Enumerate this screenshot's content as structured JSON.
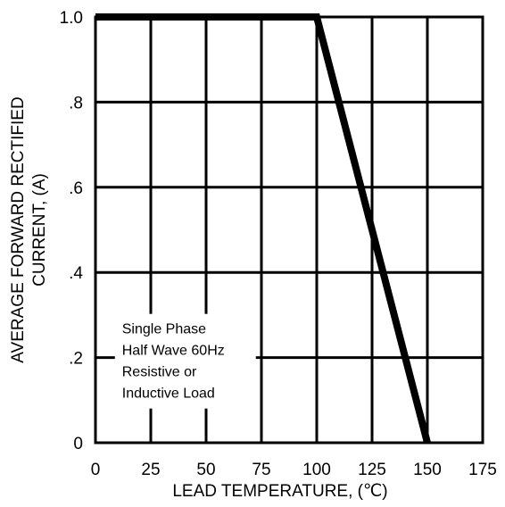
{
  "chart_data": {
    "type": "line",
    "xlabel": "LEAD TEMPERATURE, (℃)",
    "ylabel_lines": [
      "AVERAGE FORWARD RECTIFIED",
      "CURRENT, (A)"
    ],
    "xlim": [
      0,
      175
    ],
    "ylim": [
      0,
      1.0
    ],
    "x_ticks": [
      {
        "value": 0,
        "label": "0"
      },
      {
        "value": 25,
        "label": "25"
      },
      {
        "value": 50,
        "label": "50"
      },
      {
        "value": 75,
        "label": "75"
      },
      {
        "value": 100,
        "label": "100"
      },
      {
        "value": 125,
        "label": "125"
      },
      {
        "value": 150,
        "label": "150"
      },
      {
        "value": 175,
        "label": "175"
      }
    ],
    "y_ticks": [
      {
        "value": 0,
        "label": "0"
      },
      {
        "value": 0.2,
        "label": ".2"
      },
      {
        "value": 0.4,
        "label": ".4"
      },
      {
        "value": 0.6,
        "label": ".6"
      },
      {
        "value": 0.8,
        "label": ".8"
      },
      {
        "value": 1.0,
        "label": "1.0"
      }
    ],
    "grid": true,
    "series": [
      {
        "x": [
          0,
          100,
          150
        ],
        "y": [
          1.0,
          1.0,
          0
        ],
        "color": "#000000"
      }
    ],
    "annotation": {
      "lines": [
        "Single Phase",
        "Half Wave 60Hz",
        "Resistive or",
        "Inductive Load"
      ],
      "anchor": {
        "x": 12,
        "y": 0.29
      }
    }
  }
}
